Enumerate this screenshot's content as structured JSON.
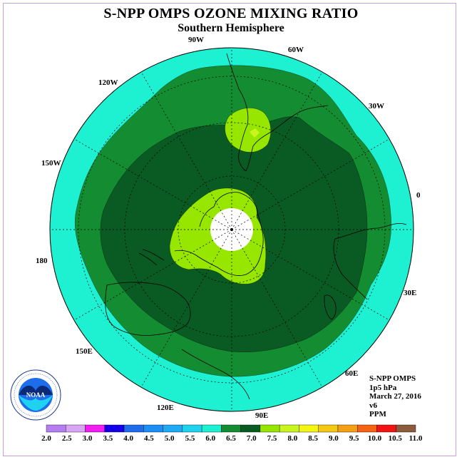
{
  "title": "S-NPP OMPS OZONE MIXING RATIO",
  "subtitle": "Southern Hemisphere",
  "logo": {
    "text": "NOAA",
    "ring_text": "NATIONAL OCEANIC AND ATMOSPHERIC ADMINISTRATION · U.S. DEPARTMENT OF COMMERCE"
  },
  "longitude_labels": {
    "lon_90w": "90W",
    "lon_60w": "60W",
    "lon_120w": "120W",
    "lon_30w": "30W",
    "lon_150w": "150W",
    "lon_0": "0",
    "lon_180": "180",
    "lon_30e": "30E",
    "lon_150e": "150E",
    "lon_60e": "60E",
    "lon_120e": "120E",
    "lon_90e": "90E"
  },
  "info": {
    "instrument": "S-NPP OMPS",
    "level": "1p5 hPa",
    "date": "March 27, 2016",
    "version": "v6",
    "units": "PPM"
  },
  "colorbar": {
    "ticks": [
      "2.0",
      "2.5",
      "3.0",
      "3.5",
      "4.0",
      "4.5",
      "5.0",
      "5.5",
      "6.0",
      "6.5",
      "7.0",
      "7.5",
      "8.0",
      "8.5",
      "9.0",
      "9.5",
      "10.0",
      "10.5",
      "11.0"
    ],
    "colors": [
      "#b57df2",
      "#d9a6f5",
      "#f01ef0",
      "#1400e6",
      "#1e6eeb",
      "#1e8ef5",
      "#1eaaf5",
      "#1ed2f0",
      "#1ef0d2",
      "#148c32",
      "#0a5a23",
      "#96e600",
      "#c8f51e",
      "#f5f514",
      "#f5c814",
      "#f5a014",
      "#f56414",
      "#f01414",
      "#8c5a3c"
    ]
  },
  "chart_data": {
    "type": "heatmap",
    "projection": "south polar stereographic",
    "title": "S-NPP OMPS OZONE MIXING RATIO",
    "subtitle": "Southern Hemisphere",
    "units": "PPM",
    "pressure_level": "1p5 hPa",
    "date": "March 27, 2016",
    "color_scale_min": 2.0,
    "color_scale_max": 11.0,
    "color_scale_step": 0.5,
    "regions": [
      {
        "range": "5.5-6.0",
        "description": "outer ring, mid latitudes"
      },
      {
        "range": "6.0-6.5",
        "description": "band surrounding polar region"
      },
      {
        "range": "6.5-7.0",
        "description": "broad polar region"
      },
      {
        "range": "7.0-7.5",
        "description": "patches near pole and over southern South America"
      },
      {
        "range": "7.5-8.0",
        "description": "small spot over southern South America"
      }
    ],
    "missing_data": "polar night cap at the pole"
  }
}
